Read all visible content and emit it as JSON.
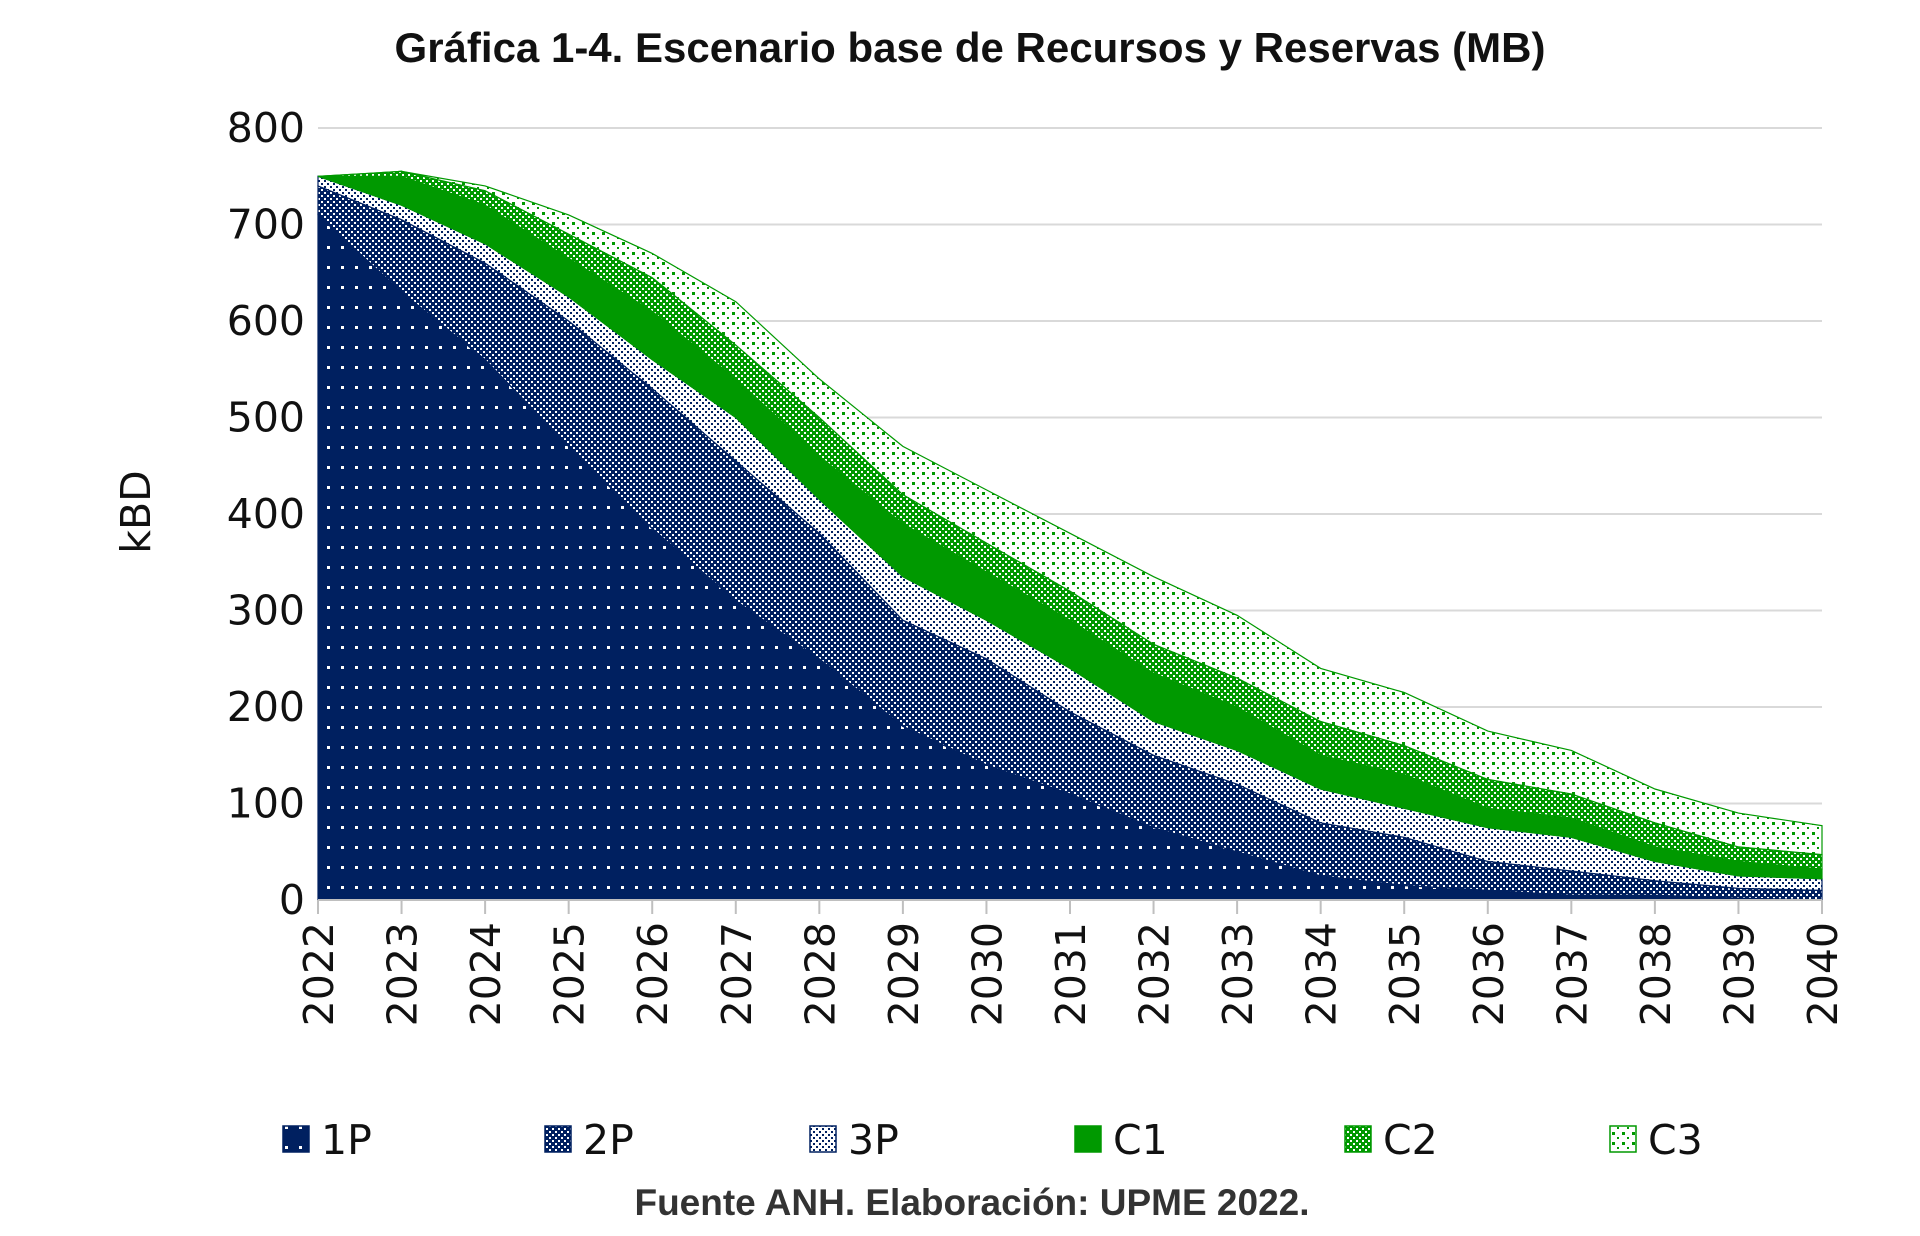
{
  "chart_data": {
    "type": "area",
    "stacked": true,
    "title": "Gráfica 1-4. Escenario base de Recursos y Reservas (MB)",
    "xlabel": "",
    "ylabel": "kBD",
    "ylim": [
      0,
      800
    ],
    "yticks": [
      "0",
      "100",
      "200",
      "300",
      "400",
      "500",
      "600",
      "700",
      "800"
    ],
    "grid": true,
    "legend_position": "bottom",
    "source": "Fuente ANH. Elaboración: UPME 2022.",
    "categories": [
      "2022",
      "2023",
      "2024",
      "2025",
      "2026",
      "2027",
      "2028",
      "2029",
      "2030",
      "2031",
      "2032",
      "2033",
      "2034",
      "2035",
      "2036",
      "2037",
      "2038",
      "2039",
      "2040"
    ],
    "series": [
      {
        "name": "1P",
        "color": "#002060",
        "values": [
          710,
          630,
          560,
          470,
          385,
          310,
          250,
          180,
          140,
          110,
          75,
          50,
          25,
          15,
          10,
          5,
          5,
          2,
          0
        ]
      },
      {
        "name": "2P",
        "color": "#002060",
        "values": [
          30,
          75,
          100,
          130,
          145,
          145,
          130,
          110,
          110,
          85,
          75,
          70,
          55,
          50,
          30,
          25,
          15,
          10,
          10
        ]
      },
      {
        "name": "3P",
        "color": "#002060",
        "values": [
          10,
          15,
          20,
          25,
          30,
          45,
          35,
          45,
          40,
          45,
          35,
          35,
          35,
          30,
          35,
          35,
          20,
          13,
          12
        ]
      },
      {
        "name": "C1",
        "color": "#009900",
        "values": [
          0,
          30,
          40,
          40,
          50,
          40,
          45,
          55,
          50,
          50,
          50,
          45,
          35,
          35,
          20,
          20,
          15,
          15,
          10
        ]
      },
      {
        "name": "C2",
        "color": "#009900",
        "values": [
          0,
          5,
          15,
          25,
          35,
          35,
          40,
          30,
          30,
          30,
          30,
          30,
          35,
          30,
          30,
          25,
          25,
          15,
          15
        ]
      },
      {
        "name": "C3",
        "color": "#009900",
        "values": [
          0,
          0,
          5,
          20,
          25,
          45,
          40,
          50,
          55,
          60,
          70,
          65,
          55,
          55,
          50,
          45,
          35,
          35,
          30
        ]
      }
    ]
  }
}
